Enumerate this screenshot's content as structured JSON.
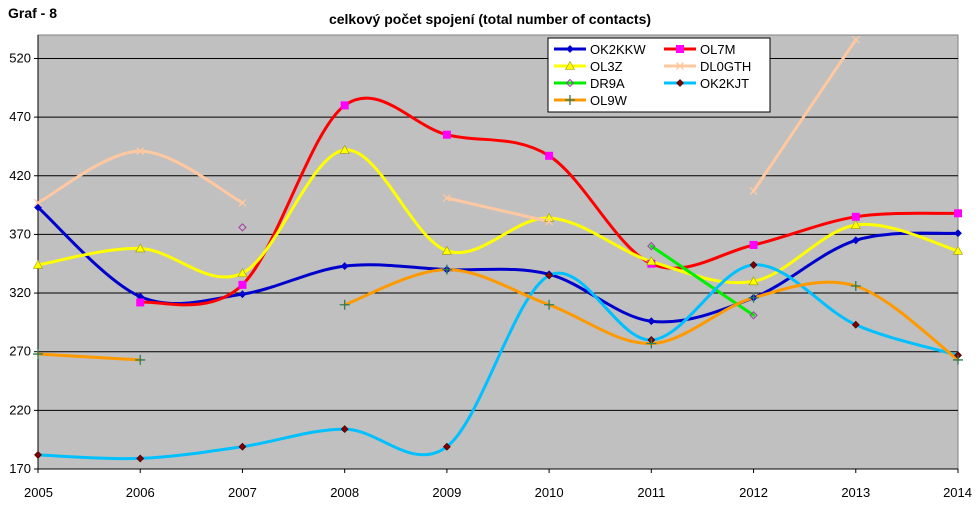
{
  "corner_label": "Graf - 8",
  "chart_data": {
    "type": "line",
    "title": "celkový počet spojení (total number of contacts)",
    "xlabel": "",
    "ylabel": "",
    "x": [
      2005,
      2006,
      2007,
      2008,
      2009,
      2010,
      2011,
      2012,
      2013,
      2014
    ],
    "x_tick_labels": [
      "2005",
      "2006",
      "2007",
      "2008",
      "2009",
      "2010",
      "2011",
      "2012",
      "2013",
      "2014"
    ],
    "ylim": [
      170,
      540
    ],
    "y_ticks": [
      170,
      220,
      270,
      320,
      370,
      420,
      470,
      520
    ],
    "y_tick_labels": [
      "170",
      "220",
      "270",
      "320",
      "370",
      "420",
      "470",
      "520"
    ],
    "grid": "horizontal",
    "legend_position": "top-right",
    "plot_background": "#c0c0c0",
    "series": [
      {
        "name": "OK2KKW",
        "color": "#0000cc",
        "marker": "diamond",
        "values": [
          393,
          317,
          319,
          343,
          340,
          336,
          296,
          316,
          365,
          371
        ]
      },
      {
        "name": "OL7M",
        "color": "#ff0000",
        "marker_color": "#ff00ff",
        "marker": "square",
        "values": [
          null,
          312,
          327,
          480,
          455,
          437,
          345,
          361,
          385,
          388
        ]
      },
      {
        "name": "OL3Z",
        "color": "#ffff00",
        "marker": "triangle",
        "values": [
          344,
          358,
          337,
          442,
          356,
          384,
          347,
          330,
          378,
          356
        ]
      },
      {
        "name": "DL0GTH",
        "color": "#ffc8a0",
        "marker": "x",
        "values": [
          397,
          441,
          397,
          null,
          401,
          381,
          null,
          407,
          536,
          null
        ]
      },
      {
        "name": "DR9A",
        "color": "#00ee00",
        "marker": "diamond-open",
        "values": [
          null,
          null,
          376,
          null,
          null,
          null,
          360,
          301,
          null,
          null
        ]
      },
      {
        "name": "OK2KJT",
        "color": "#00c0ff",
        "marker": "diamond-dark",
        "values": [
          182,
          179,
          189,
          204,
          189,
          335,
          280,
          344,
          293,
          267
        ]
      },
      {
        "name": "OL9W",
        "color": "#ff9900",
        "marker": "plus",
        "values": [
          268,
          263,
          null,
          310,
          340,
          310,
          277,
          316,
          326,
          263
        ]
      }
    ]
  }
}
